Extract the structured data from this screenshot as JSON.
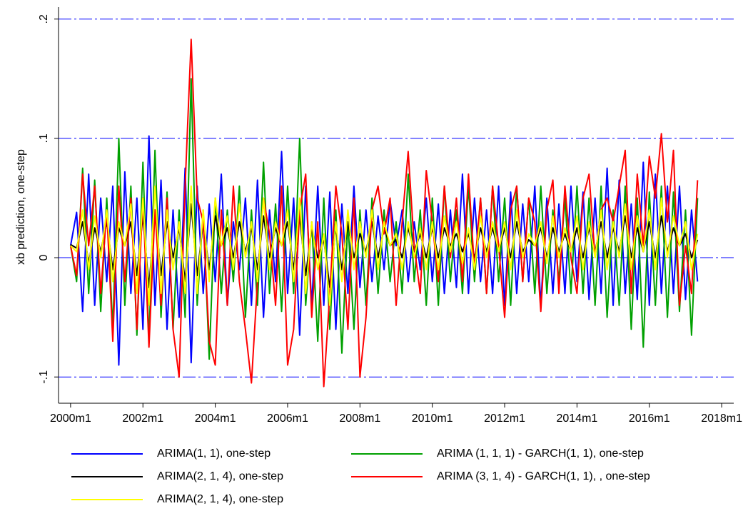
{
  "chart_data": {
    "type": "line",
    "ylabel": "xb prediction, one-step",
    "xlim": [
      476,
      700
    ],
    "ylim": [
      -0.122,
      0.21
    ],
    "xticks": [
      {
        "value": 480,
        "label": "2000m1"
      },
      {
        "value": 504,
        "label": "2002m1"
      },
      {
        "value": 528,
        "label": "2004m1"
      },
      {
        "value": 552,
        "label": "2006m1"
      },
      {
        "value": 576,
        "label": "2008m1"
      },
      {
        "value": 600,
        "label": "2010m1"
      },
      {
        "value": 624,
        "label": "2012m1"
      },
      {
        "value": 648,
        "label": "2014m1"
      },
      {
        "value": 672,
        "label": "2016m1"
      },
      {
        "value": 696,
        "label": "2018m1"
      }
    ],
    "yticks": [
      {
        "value": -0.1,
        "label": "-.1"
      },
      0,
      {
        "value": 0.1,
        "label": ".1"
      },
      {
        "value": 0.2,
        "label": ".2"
      }
    ],
    "grid": true,
    "grid_color": "#0000ff",
    "x": [
      480,
      482,
      484,
      486,
      488,
      490,
      492,
      494,
      496,
      498,
      500,
      502,
      504,
      506,
      508,
      510,
      512,
      514,
      516,
      518,
      520,
      522,
      524,
      526,
      528,
      530,
      532,
      534,
      536,
      538,
      540,
      542,
      544,
      546,
      548,
      550,
      552,
      554,
      556,
      558,
      560,
      562,
      564,
      566,
      568,
      570,
      572,
      574,
      576,
      578,
      580,
      582,
      584,
      586,
      588,
      590,
      592,
      594,
      596,
      598,
      600,
      602,
      604,
      606,
      608,
      610,
      612,
      614,
      616,
      618,
      620,
      622,
      624,
      626,
      628,
      630,
      632,
      634,
      636,
      638,
      640,
      642,
      644,
      646,
      648,
      650,
      652,
      654,
      656,
      658,
      660,
      662,
      664,
      666,
      668,
      670,
      672,
      674,
      676,
      678,
      680,
      682,
      684,
      686,
      688
    ],
    "series": [
      {
        "name": "ARIMA(1, 1), one-step",
        "color": "#0000ff",
        "values": [
          0.01,
          0.038,
          -0.045,
          0.07,
          -0.04,
          0.05,
          -0.02,
          0.06,
          -0.09,
          0.072,
          -0.03,
          0.05,
          -0.06,
          0.102,
          -0.04,
          0.065,
          -0.06,
          0.04,
          -0.05,
          0.075,
          -0.088,
          0.06,
          -0.03,
          0.045,
          -0.02,
          0.07,
          -0.04,
          0.03,
          -0.01,
          0.05,
          -0.04,
          0.065,
          -0.05,
          0.04,
          -0.02,
          0.089,
          -0.03,
          0.05,
          -0.065,
          0.06,
          -0.04,
          0.06,
          -0.04,
          0.055,
          -0.06,
          0.045,
          -0.03,
          0.06,
          -0.025,
          0.04,
          -0.02,
          0.035,
          -0.01,
          0.048,
          0.01,
          0.04,
          -0.02,
          0.03,
          -0.01,
          0.05,
          -0.02,
          0.045,
          -0.03,
          0.04,
          -0.025,
          0.07,
          -0.03,
          0.05,
          -0.02,
          0.04,
          -0.03,
          0.06,
          -0.04,
          0.055,
          -0.03,
          0.045,
          -0.02,
          0.06,
          -0.04,
          0.05,
          -0.03,
          0.045,
          -0.03,
          0.06,
          -0.02,
          0.055,
          -0.035,
          0.05,
          -0.03,
          0.075,
          -0.04,
          0.065,
          -0.03,
          0.045,
          -0.035,
          0.08,
          -0.04,
          0.07,
          -0.03,
          0.06,
          -0.03,
          0.06,
          -0.035,
          0.04,
          -0.02
        ]
      },
      {
        "name": "ARIMA (1, 1, 1) - GARCH(1, 1), one-step",
        "color": "#00a000",
        "values": [
          0.01,
          -0.02,
          0.075,
          -0.03,
          0.065,
          -0.045,
          0.05,
          -0.06,
          0.1,
          -0.04,
          0.06,
          -0.065,
          0.08,
          -0.07,
          0.09,
          -0.05,
          0.055,
          -0.06,
          0.04,
          -0.05,
          0.15,
          -0.04,
          0.04,
          -0.085,
          0.05,
          -0.03,
          0.04,
          -0.02,
          0.06,
          -0.05,
          0.04,
          -0.04,
          0.08,
          -0.03,
          0.045,
          -0.045,
          0.06,
          -0.03,
          0.1,
          -0.04,
          0.03,
          -0.07,
          0.05,
          -0.06,
          0.04,
          -0.08,
          0.03,
          -0.06,
          0.04,
          -0.04,
          0.05,
          -0.03,
          0.04,
          -0.02,
          0.03,
          -0.03,
          0.07,
          -0.02,
          0.04,
          -0.04,
          0.05,
          -0.04,
          0.06,
          -0.02,
          0.04,
          -0.03,
          0.06,
          -0.02,
          0.05,
          -0.03,
          0.06,
          -0.02,
          0.05,
          -0.04,
          0.06,
          -0.02,
          0.05,
          -0.03,
          0.06,
          -0.03,
          0.04,
          -0.02,
          0.05,
          -0.03,
          0.06,
          -0.03,
          0.05,
          -0.04,
          0.06,
          -0.05,
          0.04,
          -0.04,
          0.06,
          -0.06,
          0.05,
          -0.075,
          0.055,
          -0.04,
          0.06,
          -0.05,
          0.055,
          -0.045,
          0.04,
          -0.065,
          0.05
        ]
      },
      {
        "name": "ARIMA(2, 1, 4), one-step",
        "color": "#000000",
        "values": [
          0.011,
          0.008,
          0.03,
          -0.005,
          0.025,
          0.005,
          0.03,
          -0.01,
          0.025,
          0.01,
          0.03,
          -0.015,
          0.035,
          -0.025,
          0.04,
          -0.015,
          0.03,
          0.0,
          0.025,
          -0.02,
          0.045,
          -0.015,
          0.03,
          -0.01,
          0.035,
          0.01,
          0.025,
          0.0,
          0.03,
          0.005,
          0.025,
          -0.01,
          0.035,
          0.0,
          0.025,
          0.01,
          0.03,
          -0.01,
          0.035,
          -0.015,
          0.025,
          0.0,
          0.015,
          -0.025,
          0.025,
          -0.01,
          0.03,
          0.0,
          0.02,
          0.005,
          0.03,
          0.0,
          0.025,
          0.01,
          0.015,
          0.0,
          0.025,
          0.005,
          0.02,
          0.0,
          0.025,
          0.0,
          0.025,
          0.01,
          0.02,
          0.005,
          0.02,
          0.0,
          0.025,
          0.005,
          0.025,
          0.005,
          0.025,
          0.0,
          0.03,
          0.005,
          0.015,
          0.01,
          0.025,
          0.0,
          0.025,
          0.005,
          0.02,
          0.005,
          0.025,
          0.0,
          0.025,
          0.005,
          0.03,
          0.0,
          0.025,
          0.005,
          0.035,
          0.0,
          0.025,
          0.005,
          0.03,
          0.0,
          0.035,
          0.005,
          0.025,
          0.01,
          0.02,
          0.0,
          0.015
        ]
      },
      {
        "name": "ARIMA (3, 1, 4) - GARCH(1, 1), , one-step",
        "color": "#ff0000",
        "values": [
          0.01,
          -0.015,
          0.07,
          0.01,
          0.06,
          -0.03,
          0.04,
          -0.07,
          0.06,
          -0.02,
          0.05,
          -0.06,
          0.05,
          -0.075,
          0.04,
          -0.04,
          0.05,
          -0.06,
          -0.1,
          0.06,
          0.183,
          0.05,
          0.03,
          -0.07,
          -0.09,
          0.04,
          -0.04,
          0.06,
          -0.02,
          -0.06,
          -0.105,
          -0.02,
          0.05,
          0.02,
          -0.04,
          0.06,
          -0.09,
          -0.06,
          0.04,
          0.07,
          -0.05,
          0.03,
          -0.108,
          -0.03,
          0.06,
          0.02,
          -0.06,
          0.05,
          -0.1,
          -0.05,
          0.04,
          0.06,
          0.02,
          0.05,
          -0.04,
          0.03,
          0.089,
          0.01,
          -0.03,
          0.073,
          0.03,
          -0.02,
          0.06,
          0.0,
          0.05,
          -0.02,
          0.07,
          -0.01,
          0.05,
          -0.03,
          0.06,
          0.01,
          -0.05,
          0.04,
          0.06,
          -0.02,
          0.05,
          0.03,
          -0.045,
          0.04,
          0.065,
          -0.03,
          0.06,
          0.0,
          -0.03,
          0.05,
          0.07,
          0.0,
          0.04,
          0.05,
          0.03,
          0.06,
          0.09,
          -0.03,
          0.07,
          0.01,
          0.085,
          0.05,
          0.104,
          0.03,
          0.09,
          -0.04,
          0.01,
          -0.03,
          0.065
        ]
      },
      {
        "name": "ARIMA(2, 1, 4), one-step",
        "color": "#ffff00",
        "values": [
          0.01,
          0.005,
          0.04,
          -0.01,
          0.035,
          0.0,
          0.04,
          -0.02,
          0.03,
          0.01,
          0.045,
          -0.03,
          0.05,
          -0.04,
          0.06,
          -0.03,
          0.04,
          -0.01,
          0.03,
          -0.03,
          0.06,
          -0.03,
          0.04,
          -0.02,
          0.05,
          0.01,
          0.035,
          -0.01,
          0.045,
          0.0,
          0.03,
          -0.02,
          0.05,
          -0.01,
          0.03,
          0.01,
          0.04,
          -0.02,
          0.05,
          -0.03,
          0.03,
          -0.01,
          0.02,
          -0.04,
          0.03,
          -0.02,
          0.04,
          -0.01,
          0.03,
          0.0,
          0.04,
          -0.01,
          0.03,
          0.01,
          0.02,
          -0.01,
          0.03,
          0.0,
          0.025,
          -0.01,
          0.03,
          -0.01,
          0.035,
          0.005,
          0.03,
          -0.005,
          0.025,
          -0.01,
          0.035,
          0.0,
          0.03,
          0.005,
          0.03,
          -0.01,
          0.04,
          0.0,
          0.02,
          0.01,
          0.03,
          -0.005,
          0.035,
          0.0,
          0.025,
          0.005,
          0.035,
          -0.01,
          0.03,
          0.0,
          0.04,
          -0.01,
          0.03,
          0.0,
          0.045,
          -0.01,
          0.035,
          0.005,
          0.04,
          -0.01,
          0.05,
          0.0,
          0.035,
          0.01,
          0.03,
          -0.01,
          0.02
        ]
      }
    ]
  }
}
